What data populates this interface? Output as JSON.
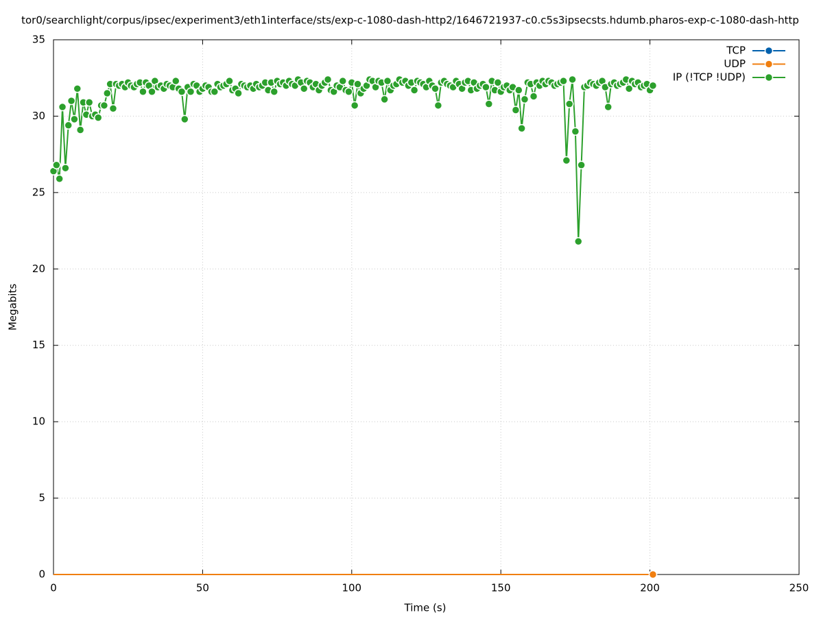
{
  "chart_data": {
    "type": "line",
    "title": "tor0/searchlight/corpus/ipsec/experiment3/eth1interface/sts/exp-c-1080-dash-http2/1646721937-c0.c5s3ipsecsts.hdumb.pharos-exp-c-1080-dash-http",
    "x_label": "Time (s)",
    "y_label": "Megabits",
    "xlim": [
      0,
      250
    ],
    "xticks": [
      0,
      50,
      100,
      150,
      200,
      250
    ],
    "ylim": [
      0,
      35
    ],
    "yticks": [
      0,
      5,
      10,
      15,
      20,
      25,
      30,
      35
    ],
    "grid": true,
    "legend": "top-right",
    "x": [
      0,
      1,
      2,
      3,
      4,
      5,
      6,
      7,
      8,
      9,
      10,
      11,
      12,
      13,
      14,
      15,
      16,
      17,
      18,
      19,
      20,
      21,
      22,
      23,
      24,
      25,
      26,
      27,
      28,
      29,
      30,
      31,
      32,
      33,
      34,
      35,
      36,
      37,
      38,
      39,
      40,
      41,
      42,
      43,
      44,
      45,
      46,
      47,
      48,
      49,
      50,
      51,
      52,
      53,
      54,
      55,
      56,
      57,
      58,
      59,
      60,
      61,
      62,
      63,
      64,
      65,
      66,
      67,
      68,
      69,
      70,
      71,
      72,
      73,
      74,
      75,
      76,
      77,
      78,
      79,
      80,
      81,
      82,
      83,
      84,
      85,
      86,
      87,
      88,
      89,
      90,
      91,
      92,
      93,
      94,
      95,
      96,
      97,
      98,
      99,
      100,
      101,
      102,
      103,
      104,
      105,
      106,
      107,
      108,
      109,
      110,
      111,
      112,
      113,
      114,
      115,
      116,
      117,
      118,
      119,
      120,
      121,
      122,
      123,
      124,
      125,
      126,
      127,
      128,
      129,
      130,
      131,
      132,
      133,
      134,
      135,
      136,
      137,
      138,
      139,
      140,
      141,
      142,
      143,
      144,
      145,
      146,
      147,
      148,
      149,
      150,
      151,
      152,
      153,
      154,
      155,
      156,
      157,
      158,
      159,
      160,
      161,
      162,
      163,
      164,
      165,
      166,
      167,
      168,
      169,
      170,
      171,
      172,
      173,
      174,
      175,
      176,
      177,
      178,
      179,
      180,
      181,
      182,
      183,
      184,
      185,
      186,
      187,
      188,
      189,
      190,
      191,
      192,
      193,
      194,
      195,
      196,
      197,
      198,
      199,
      200,
      201
    ],
    "series": [
      {
        "name": "TCP",
        "color": "#0060ad",
        "values": [
          0,
          0,
          0,
          0,
          0,
          0,
          0,
          0,
          0,
          0,
          0,
          0,
          0,
          0,
          0,
          0,
          0,
          0,
          0,
          0,
          0,
          0,
          0,
          0,
          0,
          0,
          0,
          0,
          0,
          0,
          0,
          0,
          0,
          0,
          0,
          0,
          0,
          0,
          0,
          0,
          0,
          0,
          0,
          0,
          0,
          0,
          0,
          0,
          0,
          0,
          0,
          0,
          0,
          0,
          0,
          0,
          0,
          0,
          0,
          0,
          0,
          0,
          0,
          0,
          0,
          0,
          0,
          0,
          0,
          0,
          0,
          0,
          0,
          0,
          0,
          0,
          0,
          0,
          0,
          0,
          0,
          0,
          0,
          0,
          0,
          0,
          0,
          0,
          0,
          0,
          0,
          0,
          0,
          0,
          0,
          0,
          0,
          0,
          0,
          0,
          0,
          0,
          0,
          0,
          0,
          0,
          0,
          0,
          0,
          0,
          0,
          0,
          0,
          0,
          0,
          0,
          0,
          0,
          0,
          0,
          0,
          0,
          0,
          0,
          0,
          0,
          0,
          0,
          0,
          0,
          0,
          0,
          0,
          0,
          0,
          0,
          0,
          0,
          0,
          0,
          0,
          0,
          0,
          0,
          0,
          0,
          0,
          0,
          0,
          0,
          0,
          0,
          0,
          0,
          0,
          0,
          0,
          0,
          0,
          0,
          0,
          0,
          0,
          0,
          0,
          0,
          0,
          0,
          0,
          0,
          0,
          0,
          0,
          0,
          0,
          0,
          0,
          0,
          0,
          0,
          0,
          0,
          0,
          0,
          0,
          0,
          0,
          0,
          0,
          0,
          0,
          0,
          0,
          0,
          0,
          0,
          0,
          0,
          0,
          0,
          0,
          0
        ]
      },
      {
        "name": "UDP",
        "color": "#f07f10",
        "values": [
          0,
          0,
          0,
          0,
          0,
          0,
          0,
          0,
          0,
          0,
          0,
          0,
          0,
          0,
          0,
          0,
          0,
          0,
          0,
          0,
          0,
          0,
          0,
          0,
          0,
          0,
          0,
          0,
          0,
          0,
          0,
          0,
          0,
          0,
          0,
          0,
          0,
          0,
          0,
          0,
          0,
          0,
          0,
          0,
          0,
          0,
          0,
          0,
          0,
          0,
          0,
          0,
          0,
          0,
          0,
          0,
          0,
          0,
          0,
          0,
          0,
          0,
          0,
          0,
          0,
          0,
          0,
          0,
          0,
          0,
          0,
          0,
          0,
          0,
          0,
          0,
          0,
          0,
          0,
          0,
          0,
          0,
          0,
          0,
          0,
          0,
          0,
          0,
          0,
          0,
          0,
          0,
          0,
          0,
          0,
          0,
          0,
          0,
          0,
          0,
          0,
          0,
          0,
          0,
          0,
          0,
          0,
          0,
          0,
          0,
          0,
          0,
          0,
          0,
          0,
          0,
          0,
          0,
          0,
          0,
          0,
          0,
          0,
          0,
          0,
          0,
          0,
          0,
          0,
          0,
          0,
          0,
          0,
          0,
          0,
          0,
          0,
          0,
          0,
          0,
          0,
          0,
          0,
          0,
          0,
          0,
          0,
          0,
          0,
          0,
          0,
          0,
          0,
          0,
          0,
          0,
          0,
          0,
          0,
          0,
          0,
          0,
          0,
          0,
          0,
          0,
          0,
          0,
          0,
          0,
          0,
          0,
          0,
          0,
          0,
          0,
          0,
          0,
          0,
          0,
          0,
          0,
          0,
          0,
          0,
          0,
          0,
          0,
          0,
          0,
          0,
          0,
          0,
          0,
          0,
          0,
          0,
          0,
          0,
          0,
          0,
          0
        ]
      },
      {
        "name": "IP (!TCP  !UDP)",
        "color": "#2ca02c",
        "values": [
          26.4,
          26.8,
          25.9,
          30.6,
          26.6,
          29.4,
          31.0,
          29.8,
          31.8,
          29.1,
          30.9,
          30.1,
          30.9,
          30.0,
          30.1,
          29.9,
          30.7,
          30.7,
          31.5,
          32.1,
          30.5,
          32.1,
          32.0,
          32.1,
          31.9,
          32.2,
          32.0,
          31.9,
          32.1,
          32.2,
          31.6,
          32.2,
          32.0,
          31.6,
          32.3,
          31.9,
          32.0,
          31.8,
          32.1,
          32.0,
          31.9,
          32.3,
          31.8,
          31.6,
          29.8,
          31.9,
          31.6,
          32.1,
          32.0,
          31.6,
          31.8,
          32.0,
          31.9,
          31.6,
          31.6,
          32.1,
          31.9,
          32.0,
          32.1,
          32.3,
          31.7,
          31.8,
          31.5,
          32.1,
          32.0,
          31.9,
          32.0,
          31.8,
          32.1,
          31.9,
          32.0,
          32.2,
          31.7,
          32.2,
          31.6,
          32.3,
          32.1,
          32.2,
          32.0,
          32.3,
          32.1,
          32.0,
          32.4,
          32.2,
          31.8,
          32.3,
          32.2,
          31.9,
          32.1,
          31.7,
          32.0,
          32.2,
          32.4,
          31.7,
          31.6,
          32.0,
          31.9,
          32.3,
          31.7,
          31.6,
          32.2,
          30.7,
          32.1,
          31.5,
          31.8,
          32.0,
          32.4,
          32.3,
          31.9,
          32.3,
          32.2,
          31.1,
          32.3,
          31.7,
          32.0,
          32.1,
          32.4,
          32.2,
          32.3,
          32.0,
          32.2,
          31.7,
          32.3,
          32.2,
          32.1,
          31.9,
          32.3,
          32.0,
          31.8,
          30.7,
          32.2,
          32.3,
          32.1,
          32.0,
          31.9,
          32.3,
          32.1,
          31.8,
          32.2,
          32.3,
          31.7,
          32.2,
          31.8,
          32.0,
          32.1,
          31.9,
          30.8,
          32.3,
          31.7,
          32.2,
          31.6,
          31.9,
          32.0,
          31.7,
          31.9,
          30.4,
          31.7,
          29.2,
          31.1,
          32.2,
          32.1,
          31.3,
          32.2,
          32.0,
          32.3,
          32.1,
          32.3,
          32.2,
          32.0,
          32.1,
          32.2,
          32.3,
          27.1,
          30.8,
          32.4,
          29.0,
          21.8,
          26.8,
          31.9,
          32.0,
          32.2,
          32.1,
          32.0,
          32.2,
          32.3,
          31.9,
          30.6,
          32.1,
          32.2,
          32.0,
          32.1,
          32.2,
          32.4,
          31.8,
          32.3,
          32.1,
          32.2,
          31.9,
          32.0,
          32.1,
          31.7,
          32.0
        ]
      }
    ]
  }
}
